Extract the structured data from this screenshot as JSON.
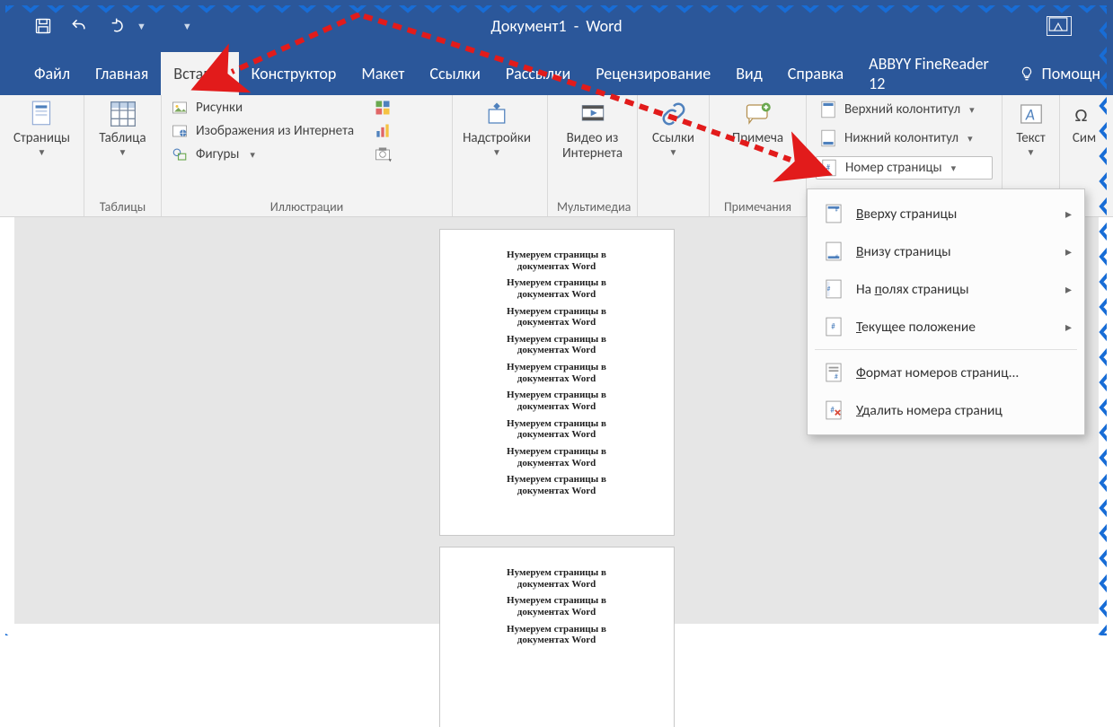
{
  "colors": {
    "brand": "#2b579a",
    "ribbon_bg": "#f3f3f3",
    "ribbon_border": "#d5d5d5",
    "workspace_bg": "#e6e6e6",
    "text": "#444444",
    "annotation": "#e21b1b",
    "jagged_border": "#186dd6"
  },
  "titlebar": {
    "document": "Документ1",
    "app": "Word"
  },
  "tabs": {
    "items": [
      "Файл",
      "Главная",
      "Вставка",
      "Конструктор",
      "Макет",
      "Ссылки",
      "Рассылки",
      "Рецензирование",
      "Вид",
      "Справка",
      "ABBYY FineReader 12"
    ],
    "tell_me": "Помощн",
    "active_index": 2
  },
  "ribbon": {
    "pages": {
      "big": "Страницы"
    },
    "tables": {
      "big": "Таблица",
      "label": "Таблицы"
    },
    "illust": {
      "items": [
        "Рисунки",
        "Изображения из Интернета",
        "Фигуры"
      ],
      "label": "Иллюстрации"
    },
    "addins": {
      "big": "Надстройки"
    },
    "media": {
      "big": "Видео из Интернета",
      "label": "Мультимедиа"
    },
    "links": {
      "big": "Ссылки"
    },
    "comments": {
      "big": "Примеча",
      "label": "Примечания"
    },
    "headerfooter": {
      "header": "Верхний колонтитул",
      "footer": "Нижний колонтитул",
      "pagenum": "Номер страницы"
    },
    "text": {
      "big": "Текст"
    },
    "symbols": {
      "big": "Сим"
    }
  },
  "menu": {
    "items": [
      {
        "label": "Вверху страницы",
        "accel": "В",
        "arrow": true
      },
      {
        "label": "Внизу страницы",
        "accel": "В",
        "arrow": true
      },
      {
        "label": "На полях страницы",
        "accel": "п",
        "arrow": true
      },
      {
        "label": "Текущее положение",
        "accel": "Т",
        "arrow": true
      }
    ],
    "items2": [
      {
        "label": "Формат номеров страниц...",
        "accel": "Ф",
        "arrow": false
      },
      {
        "label": "Удалить номера страниц",
        "accel": "У",
        "arrow": false
      }
    ]
  },
  "document": {
    "line1": "Нумеруем страницы в",
    "line2": "документах Word",
    "repeat_page1": 9,
    "repeat_page2": 3
  }
}
